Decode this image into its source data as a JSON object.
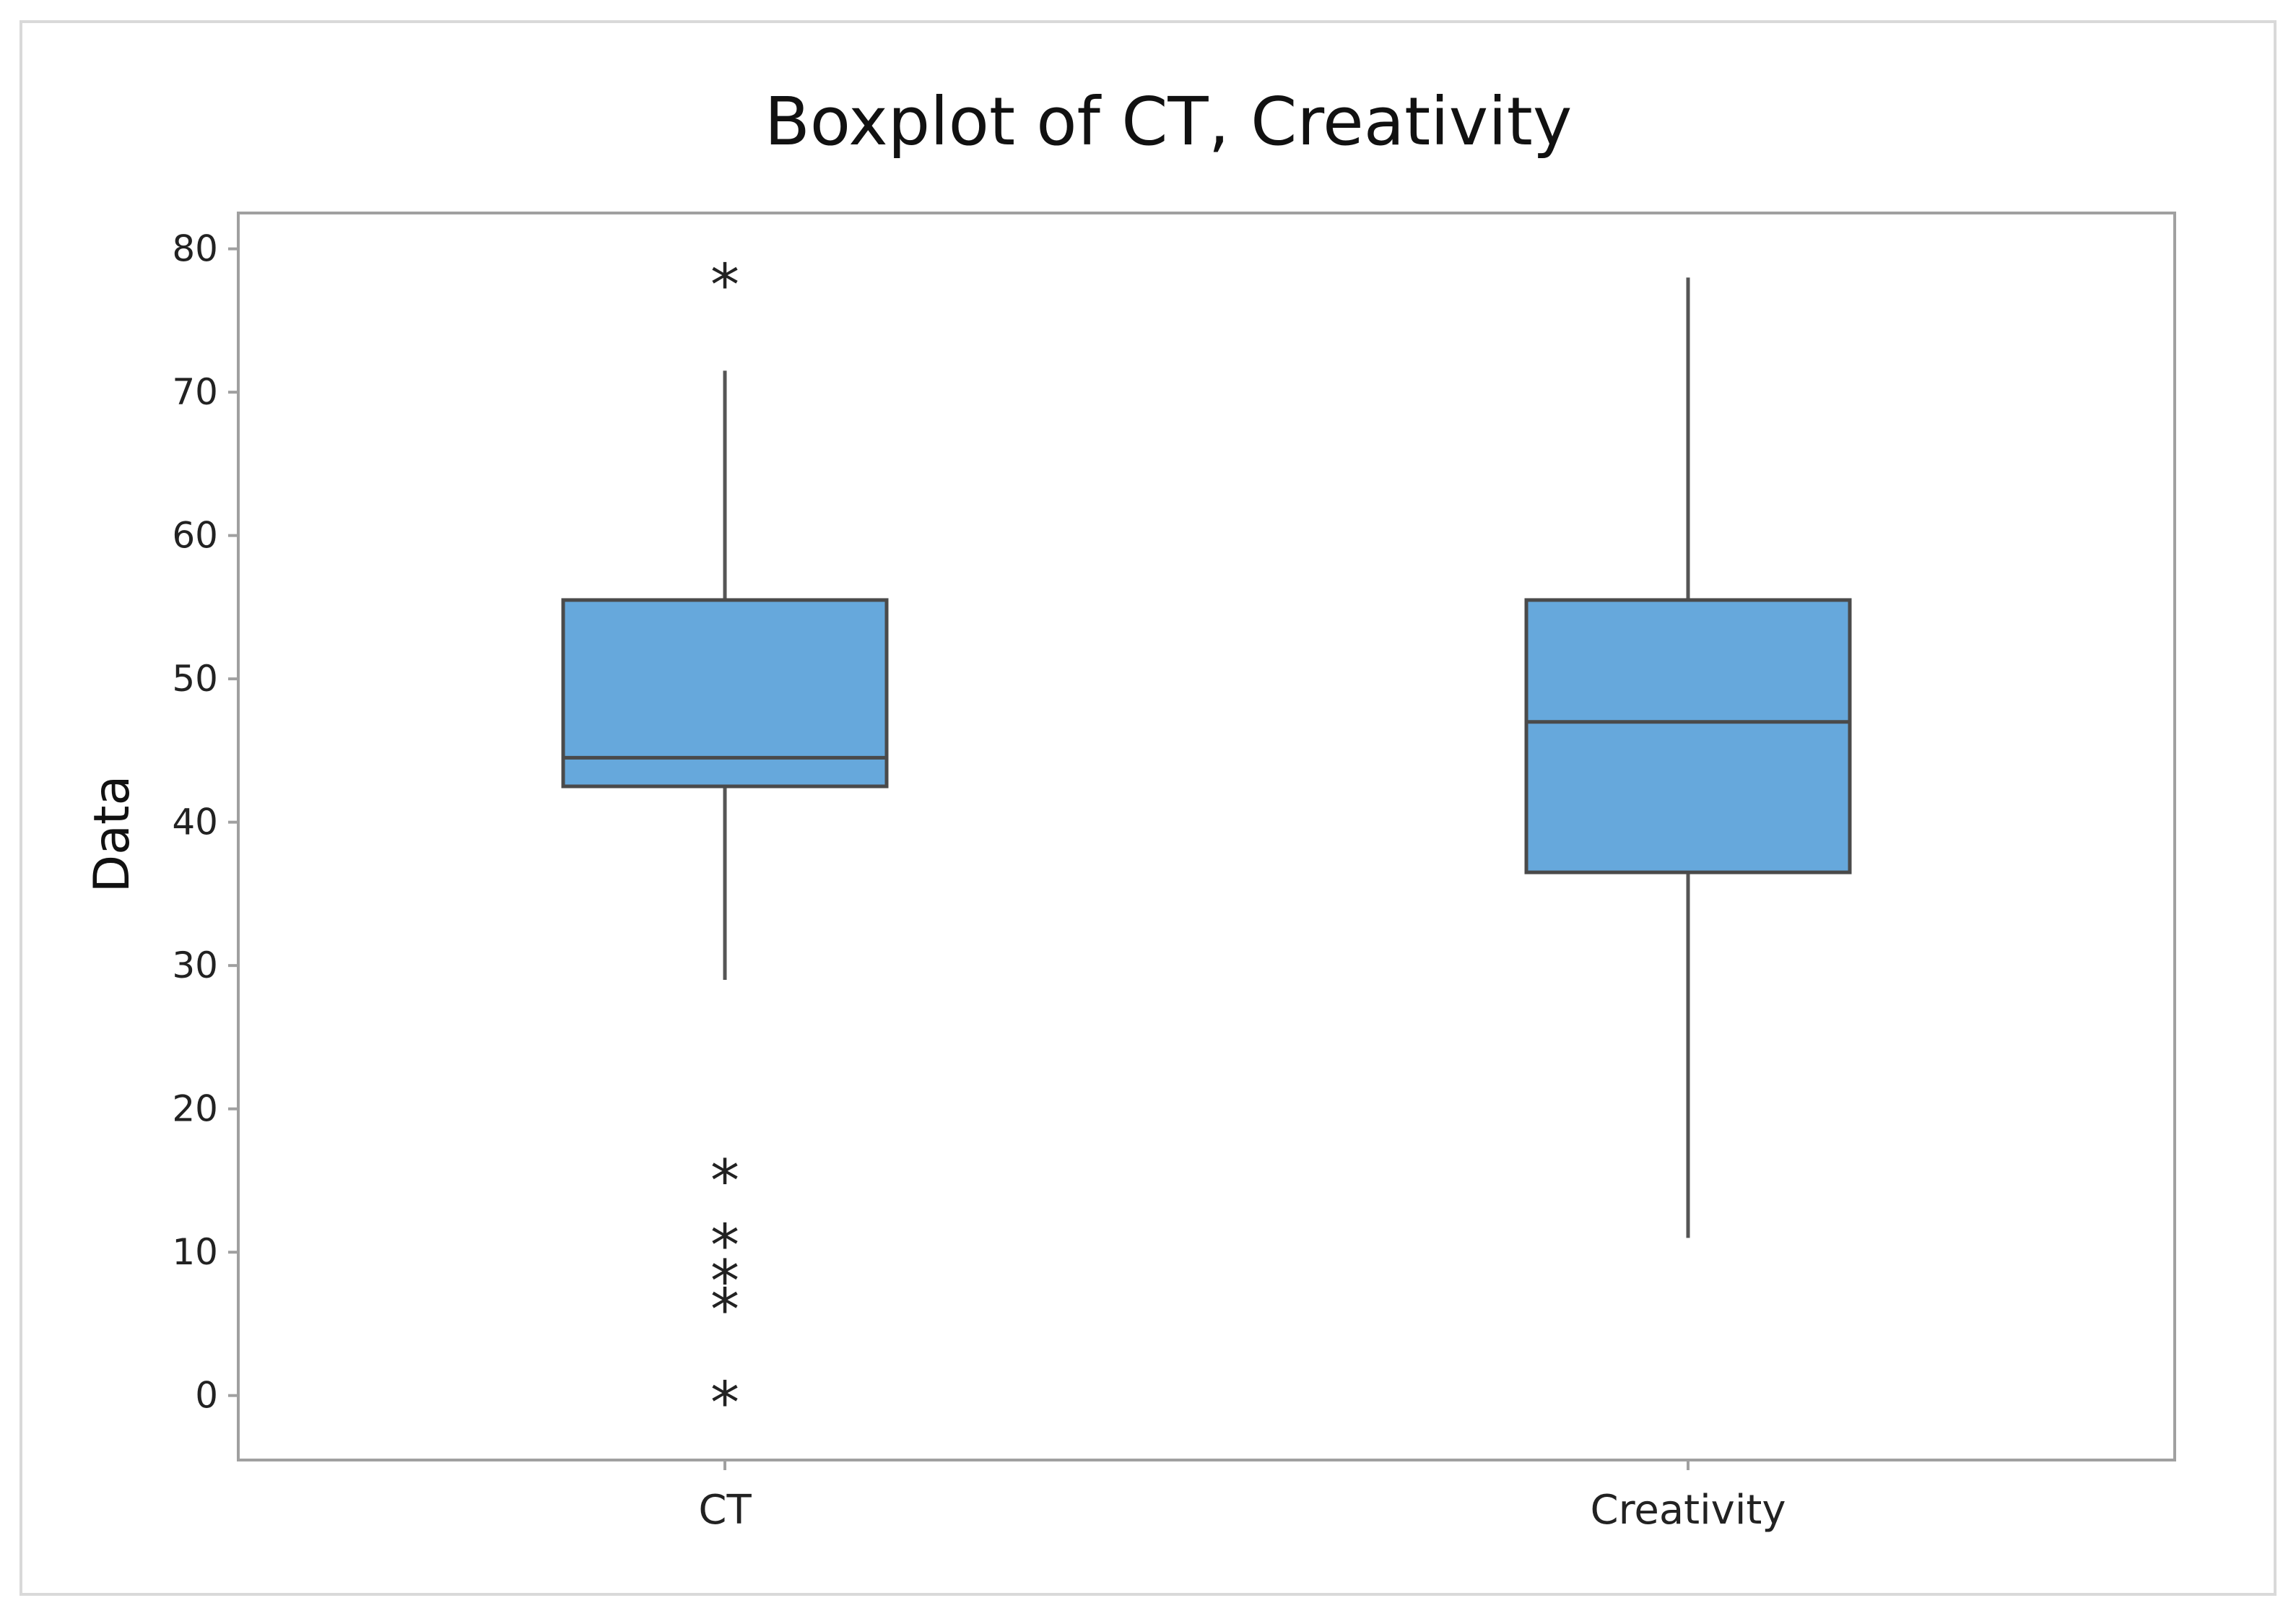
{
  "chart_data": {
    "type": "boxplot",
    "title": "Boxplot of CT, Creativity",
    "xlabel": "",
    "ylabel": "Data",
    "ylim": [
      -4.5,
      82.5
    ],
    "yticks": [
      0,
      10,
      20,
      30,
      40,
      50,
      60,
      70,
      80
    ],
    "grid": false,
    "box_color": "#66a8dc",
    "categories": [
      "CT",
      "Creativity"
    ],
    "boxes": [
      {
        "category": "CT",
        "whisker_low": 29,
        "q1": 42.5,
        "median": 44.5,
        "q3": 55.5,
        "whisker_high": 71.5,
        "outliers": [
          78,
          15.5,
          11,
          8.5,
          6.5,
          0
        ]
      },
      {
        "category": "Creativity",
        "whisker_low": 11,
        "q1": 36.5,
        "median": 47,
        "q3": 55.5,
        "whisker_high": 78,
        "outliers": []
      }
    ]
  }
}
